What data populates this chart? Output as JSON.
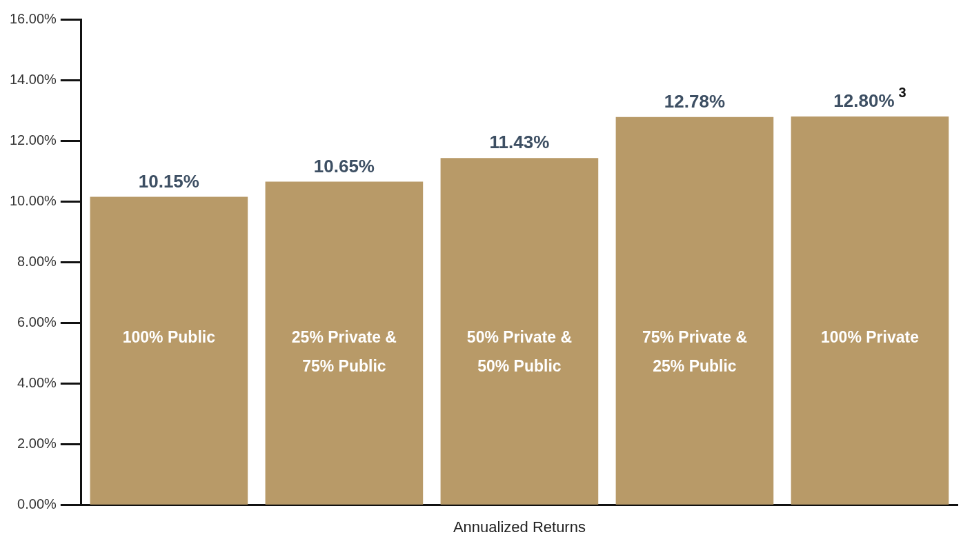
{
  "chart_data": {
    "type": "bar",
    "xlabel": "Annualized Returns",
    "categories": [
      "100% Public",
      "25% Private & 75% Public",
      "50% Private & 50% Public",
      "75% Private & 25% Public",
      "100% Private"
    ],
    "values": [
      10.15,
      10.65,
      11.43,
      12.78,
      12.8
    ],
    "value_labels": [
      "10.15%",
      "10.65%",
      "11.43%",
      "12.78%",
      "12.80%$^{3}$"
    ],
    "color": "#b89a68",
    "ylim": [
      0,
      16
    ],
    "yticks": [
      {
        "value": 0,
        "label": "0.00%"
      },
      {
        "value": 2,
        "label": "2.00%"
      },
      {
        "value": 4,
        "label": "4.00%"
      },
      {
        "value": 6,
        "label": "6.00%"
      },
      {
        "value": 8,
        "label": "8.00%"
      },
      {
        "value": 10,
        "label": "10.00%"
      },
      {
        "value": 12,
        "label": "12.00%"
      },
      {
        "value": 14,
        "label": "14.00%"
      },
      {
        "value": 16,
        "label": "16.00%"
      }
    ],
    "grid": false,
    "legend": false
  }
}
